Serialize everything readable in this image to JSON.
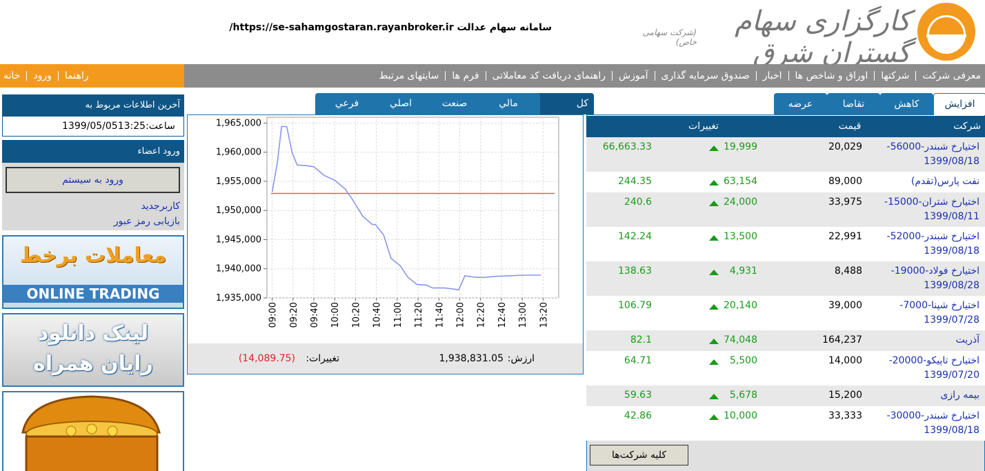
{
  "header": {
    "brand": "کارگزاری سهام گستران شرق",
    "brand_note": "(شرکت سهامی خاص)",
    "site_title": "سامانه سهام عدالت https://se-sahamgostaran.rayanbroker.ir/"
  },
  "nav": {
    "main": [
      "معرفی شرکت",
      "شرکتها",
      "اوراق و شاخص ها",
      "اخبار",
      "صندوق سرمایه گذاری",
      "آموزش",
      "راهنمای دریافت کد معاملاتی",
      "فرم ها",
      "سایتهای مرتبط"
    ],
    "side": [
      "خانه",
      "ورود",
      "راهنما"
    ]
  },
  "sidebar": {
    "info_title": "آخرین اطلاعات مربوط به",
    "info_time": "1399/05/05ساعت:13:25",
    "login_title": "ورود اعضاء",
    "login_button": "ورود به سیستم",
    "links": [
      "کاربرجدید",
      "بازیابی رمز عبور"
    ],
    "banners": [
      {
        "title": "معاملات برخط",
        "subtitle": "ONLINE TRADING"
      },
      {
        "title": "لینک دانلود",
        "subtitle": "رایان همراه"
      }
    ]
  },
  "index_tabs": [
    "کل",
    "مالي",
    "صنعت",
    "اصلي",
    "فرعي"
  ],
  "chart_data": {
    "type": "line",
    "x": [
      540,
      545,
      549,
      554,
      559,
      564,
      572,
      580,
      590,
      600,
      610,
      617,
      627,
      636,
      639,
      647,
      654,
      663,
      670,
      679,
      688,
      694,
      706,
      719,
      725,
      732,
      742,
      755,
      768,
      782,
      798
    ],
    "series": [
      {
        "color": "#8a95ea",
        "values": [
          1953200,
          1958200,
          1964400,
          1964400,
          1960000,
          1957800,
          1957700,
          1957500,
          1956000,
          1955200,
          1953700,
          1951900,
          1949000,
          1947600,
          1947600,
          1945800,
          1941800,
          1940500,
          1938600,
          1937300,
          1937200,
          1936700,
          1936700,
          1936400,
          1938800,
          1938600,
          1938500,
          1938700,
          1938800,
          1938900,
          1938900
        ]
      }
    ],
    "hline": 1952920,
    "hline_color": "#e85a5a",
    "xlim": [
      535,
      815
    ],
    "xticks": [
      {
        "value": 540,
        "label": "09:00"
      },
      {
        "value": 560,
        "label": "09:20"
      },
      {
        "value": 580,
        "label": "09:40"
      },
      {
        "value": 600,
        "label": "10:00"
      },
      {
        "value": 620,
        "label": "10:20"
      },
      {
        "value": 640,
        "label": "10:40"
      },
      {
        "value": 660,
        "label": "11:00"
      },
      {
        "value": 680,
        "label": "11:20"
      },
      {
        "value": 700,
        "label": "11:40"
      },
      {
        "value": 720,
        "label": "12:00"
      },
      {
        "value": 740,
        "label": "12:20"
      },
      {
        "value": 760,
        "label": "12:40"
      },
      {
        "value": 780,
        "label": "13:00"
      },
      {
        "value": 800,
        "label": "13:20"
      }
    ],
    "ylim": [
      1935000,
      1966000
    ],
    "yticks": [
      {
        "value": 1935000,
        "label": "1,935,000"
      },
      {
        "value": 1940000,
        "label": "1,940,000"
      },
      {
        "value": 1945000,
        "label": "1,945,000"
      },
      {
        "value": 1950000,
        "label": "1,950,000"
      },
      {
        "value": 1955000,
        "label": "1,955,000"
      },
      {
        "value": 1960000,
        "label": "1,960,000"
      },
      {
        "value": 1965000,
        "label": "1,965,000"
      }
    ],
    "grid": true
  },
  "index_summary": {
    "value_label": "ارزش:",
    "value": "1,938,831.05",
    "change_label": "تغییرات:",
    "change": "(14,089.75)"
  },
  "table_tabs": [
    "افزایش",
    "کاهش",
    "تقاضا",
    "عرضه"
  ],
  "table": {
    "columns": [
      "شرکت",
      "قیمت",
      "تغییرات"
    ],
    "rows": [
      {
        "name": "اختیارخ شبندر-56000-",
        "date": "1399/08/18",
        "price": "20,029",
        "change": "19,999",
        "percent": "66,663.33"
      },
      {
        "name": "نفت پارس(تقدم)",
        "price": "89,000",
        "change": "63,154",
        "percent": "244.35"
      },
      {
        "name": "اختیارخ شتران-15000-",
        "date": "1399/08/11",
        "price": "33,975",
        "change": "24,000",
        "percent": "240.6"
      },
      {
        "name": "اختیارخ شبندر-52000-",
        "date": "1399/08/18",
        "price": "22,991",
        "change": "13,500",
        "percent": "142.24"
      },
      {
        "name": "اختیارخ فولاد-19000-",
        "date": "1399/08/28",
        "price": "8,488",
        "change": "4,931",
        "percent": "138.63"
      },
      {
        "name": "اختیارخ شپنا-7000-",
        "date": "1399/07/28",
        "price": "39,000",
        "change": "20,140",
        "percent": "106.79"
      },
      {
        "name": "آذریت",
        "price": "164,237",
        "change": "74,048",
        "percent": "82.1"
      },
      {
        "name": "اختیارخ تاپیکو-20000-",
        "date": "1399/07/20",
        "price": "14,000",
        "change": "5,500",
        "percent": "64.71"
      },
      {
        "name": "بیمه رازی",
        "price": "15,200",
        "change": "5,678",
        "percent": "59.63"
      },
      {
        "name": "اختیارخ شبندر-30000-",
        "date": "1399/08/18",
        "price": "33,333",
        "change": "10,000",
        "percent": "42.86"
      }
    ],
    "button": "کلیه شرکت‌ها"
  }
}
